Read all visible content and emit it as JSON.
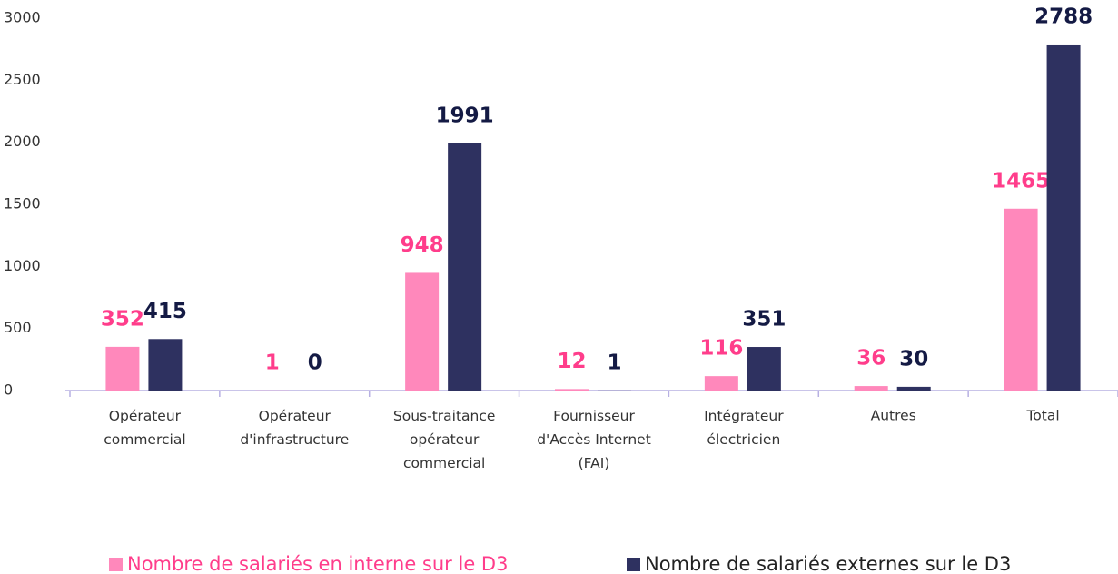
{
  "chart_data": {
    "type": "bar",
    "categories": [
      "Opérateur\ncommercial",
      "Opérateur\nd'infrastructure",
      "Sous-traitance\nopérateur\ncommercial",
      "Fournisseur\nd'Accès Internet\n(FAI)",
      "Intégrateur\nélectricien",
      "Autres",
      "Total"
    ],
    "series": [
      {
        "name": "Nombre de salariés en interne sur le D3",
        "color": "#ff88bb",
        "label_color": "#ff3d8b",
        "values": [
          352,
          1,
          948,
          12,
          116,
          36,
          1465
        ]
      },
      {
        "name": "Nombre de salariés externes sur le D3",
        "color": "#2e3160",
        "label_color": "#141a44",
        "values": [
          415,
          0,
          1991,
          1,
          351,
          30,
          2788
        ]
      }
    ],
    "ylim": [
      0,
      3000
    ],
    "yticks": [
      0,
      500,
      1000,
      1500,
      2000,
      2500,
      3000
    ],
    "grid": false,
    "legend": "bottom"
  }
}
